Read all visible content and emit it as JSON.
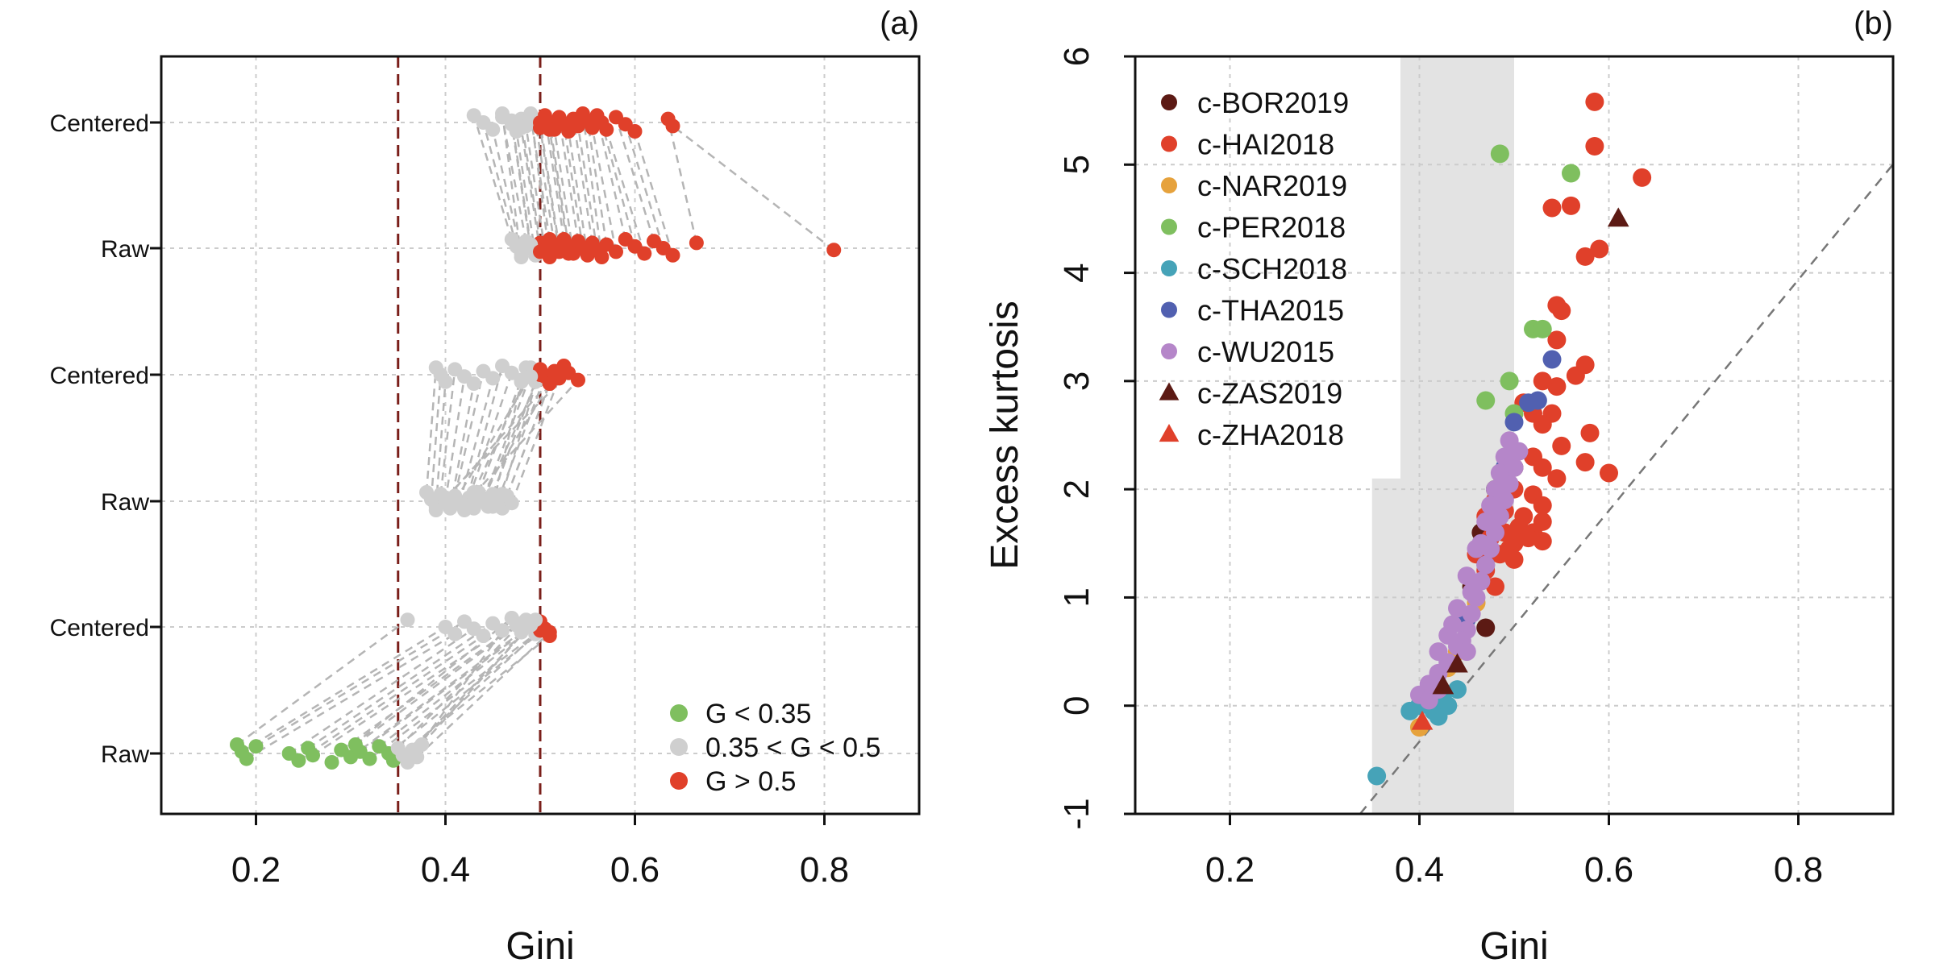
{
  "chart_data": [
    {
      "panel": "(a)",
      "type": "scatter",
      "xlabel": "Gini",
      "ylabel": "",
      "xlim": [
        0.1,
        0.9
      ],
      "xticks": [
        0.2,
        0.4,
        0.6,
        0.8
      ],
      "categories": [
        "Raw",
        "Centered",
        "Raw",
        "Centered",
        "Raw",
        "Centered"
      ],
      "grid": true,
      "vertical_reference_lines": [
        0.35,
        0.5
      ],
      "legend_position": "bottom-right",
      "legend": [
        {
          "label": "G < 0.35",
          "color": "#7fbf5f"
        },
        {
          "label": "0.35 < G < 0.5",
          "color": "#cfcfcf"
        },
        {
          "label": "G > 0.5",
          "color": "#e0402a"
        }
      ],
      "groups": [
        {
          "raw": [
            0.18,
            0.185,
            0.19,
            0.2,
            0.235,
            0.245,
            0.255,
            0.26,
            0.28,
            0.29,
            0.3,
            0.305,
            0.31,
            0.32,
            0.33,
            0.34,
            0.345,
            0.35,
            0.355,
            0.36,
            0.365,
            0.37,
            0.375
          ],
          "centered": [
            0.36,
            0.4,
            0.41,
            0.42,
            0.43,
            0.44,
            0.45,
            0.46,
            0.47,
            0.475,
            0.48,
            0.485,
            0.49,
            0.495,
            0.5,
            0.505,
            0.51,
            0.48,
            0.5,
            0.47,
            0.49,
            0.51,
            0.495
          ]
        },
        {
          "raw": [
            0.38,
            0.385,
            0.39,
            0.395,
            0.4,
            0.405,
            0.41,
            0.415,
            0.42,
            0.425,
            0.43,
            0.435,
            0.44,
            0.445,
            0.45,
            0.455,
            0.46,
            0.465,
            0.47,
            0.39,
            0.4,
            0.42,
            0.43,
            0.44,
            0.45,
            0.46,
            0.41,
            0.43
          ],
          "centered": [
            0.39,
            0.395,
            0.4,
            0.41,
            0.42,
            0.43,
            0.44,
            0.45,
            0.46,
            0.47,
            0.48,
            0.485,
            0.49,
            0.495,
            0.5,
            0.505,
            0.51,
            0.515,
            0.52,
            0.525,
            0.53,
            0.54,
            0.49,
            0.5,
            0.48,
            0.5,
            0.49,
            0.51
          ]
        },
        {
          "raw": [
            0.47,
            0.475,
            0.48,
            0.485,
            0.49,
            0.495,
            0.5,
            0.505,
            0.51,
            0.515,
            0.52,
            0.525,
            0.53,
            0.535,
            0.54,
            0.545,
            0.55,
            0.555,
            0.56,
            0.565,
            0.57,
            0.58,
            0.59,
            0.6,
            0.61,
            0.62,
            0.63,
            0.64,
            0.665,
            0.81,
            0.48,
            0.49,
            0.5,
            0.51,
            0.52,
            0.53
          ],
          "centered": [
            0.43,
            0.44,
            0.45,
            0.46,
            0.47,
            0.475,
            0.48,
            0.485,
            0.49,
            0.495,
            0.5,
            0.505,
            0.51,
            0.515,
            0.52,
            0.525,
            0.53,
            0.535,
            0.54,
            0.545,
            0.55,
            0.555,
            0.56,
            0.565,
            0.57,
            0.58,
            0.59,
            0.6,
            0.635,
            0.64,
            0.46,
            0.47,
            0.48,
            0.49,
            0.5,
            0.51
          ]
        }
      ]
    },
    {
      "panel": "(b)",
      "type": "scatter",
      "xlabel": "Gini",
      "ylabel": "Excess kurtosis",
      "xlim": [
        0.1,
        0.9
      ],
      "ylim": [
        -1,
        6
      ],
      "xticks": [
        0.2,
        0.4,
        0.6,
        0.8
      ],
      "yticks": [
        -1,
        0,
        1,
        2,
        3,
        4,
        5,
        6
      ],
      "grid": true,
      "shaded_region": {
        "x": [
          0.35,
          0.5
        ],
        "notch_x": 0.38,
        "notch_y": 2.1
      },
      "reference_line": {
        "slope": 10.67,
        "intercept": -4.6
      },
      "legend_position": "top-left",
      "series": [
        {
          "name": "c-BOR2019",
          "color": "#5c1a14",
          "marker": "circle",
          "points": [
            [
              0.47,
              0.72
            ],
            [
              0.465,
              1.6
            ],
            [
              0.48,
              2.0
            ],
            [
              0.5,
              2.2
            ],
            [
              0.455,
              1.1
            ]
          ]
        },
        {
          "name": "c-HAI2018",
          "color": "#e0402a",
          "marker": "circle",
          "points": [
            [
              0.585,
              5.58
            ],
            [
              0.585,
              5.17
            ],
            [
              0.635,
              4.88
            ],
            [
              0.56,
              4.62
            ],
            [
              0.54,
              4.6
            ],
            [
              0.59,
              4.22
            ],
            [
              0.575,
              4.15
            ],
            [
              0.545,
              3.7
            ],
            [
              0.55,
              3.65
            ],
            [
              0.545,
              3.38
            ],
            [
              0.575,
              3.15
            ],
            [
              0.565,
              3.05
            ],
            [
              0.545,
              2.95
            ],
            [
              0.53,
              3.0
            ],
            [
              0.52,
              2.7
            ],
            [
              0.54,
              2.7
            ],
            [
              0.51,
              2.8
            ],
            [
              0.53,
              2.6
            ],
            [
              0.58,
              2.52
            ],
            [
              0.55,
              2.4
            ],
            [
              0.52,
              2.3
            ],
            [
              0.53,
              2.2
            ],
            [
              0.575,
              2.25
            ],
            [
              0.6,
              2.15
            ],
            [
              0.545,
              2.1
            ],
            [
              0.5,
              2.0
            ],
            [
              0.52,
              1.95
            ],
            [
              0.53,
              1.85
            ],
            [
              0.48,
              1.9
            ],
            [
              0.51,
              1.75
            ],
            [
              0.53,
              1.7
            ],
            [
              0.49,
              1.6
            ],
            [
              0.5,
              1.5
            ],
            [
              0.53,
              1.52
            ],
            [
              0.485,
              1.4
            ],
            [
              0.5,
              1.35
            ],
            [
              0.46,
              1.4
            ],
            [
              0.47,
              1.25
            ],
            [
              0.48,
              1.1
            ],
            [
              0.52,
              1.6
            ],
            [
              0.49,
              1.8
            ],
            [
              0.505,
              1.65
            ],
            [
              0.515,
              1.55
            ],
            [
              0.475,
              1.55
            ],
            [
              0.495,
              1.45
            ],
            [
              0.47,
              1.75
            ]
          ]
        },
        {
          "name": "c-NAR2019",
          "color": "#e6a23c",
          "marker": "circle",
          "points": [
            [
              0.46,
              0.95
            ],
            [
              0.4,
              -0.2
            ],
            [
              0.44,
              0.5
            ],
            [
              0.43,
              0.35
            ]
          ]
        },
        {
          "name": "c-PER2018",
          "color": "#7fbf5f",
          "marker": "circle",
          "points": [
            [
              0.485,
              5.1
            ],
            [
              0.56,
              4.92
            ],
            [
              0.52,
              3.48
            ],
            [
              0.53,
              3.48
            ],
            [
              0.495,
              3.0
            ],
            [
              0.47,
              2.82
            ],
            [
              0.5,
              2.7
            ],
            [
              0.48,
              2.0
            ]
          ]
        },
        {
          "name": "c-SCH2018",
          "color": "#46a3b8",
          "marker": "circle",
          "points": [
            [
              0.355,
              -0.65
            ],
            [
              0.4,
              0.0
            ],
            [
              0.41,
              0.05
            ],
            [
              0.415,
              -0.05
            ],
            [
              0.42,
              -0.1
            ],
            [
              0.43,
              0.0
            ],
            [
              0.44,
              0.15
            ],
            [
              0.405,
              0.1
            ],
            [
              0.39,
              -0.05
            ],
            [
              0.425,
              0.05
            ]
          ]
        },
        {
          "name": "c-THA2015",
          "color": "#5160b0",
          "marker": "circle",
          "points": [
            [
              0.54,
              3.2
            ],
            [
              0.525,
              2.82
            ],
            [
              0.5,
              2.62
            ],
            [
              0.515,
              2.8
            ],
            [
              0.49,
              2.2
            ],
            [
              0.47,
              1.3
            ],
            [
              0.45,
              0.8
            ]
          ]
        },
        {
          "name": "c-WU2015",
          "color": "#b586c9",
          "marker": "circle",
          "points": [
            [
              0.4,
              0.1
            ],
            [
              0.41,
              0.2
            ],
            [
              0.42,
              0.3
            ],
            [
              0.43,
              0.4
            ],
            [
              0.44,
              0.55
            ],
            [
              0.45,
              0.7
            ],
            [
              0.455,
              0.85
            ],
            [
              0.46,
              1.0
            ],
            [
              0.465,
              1.15
            ],
            [
              0.47,
              1.3
            ],
            [
              0.475,
              1.45
            ],
            [
              0.48,
              1.6
            ],
            [
              0.485,
              1.75
            ],
            [
              0.49,
              1.9
            ],
            [
              0.495,
              2.05
            ],
            [
              0.5,
              2.2
            ],
            [
              0.505,
              2.35
            ],
            [
              0.49,
              2.3
            ],
            [
              0.48,
              2.0
            ],
            [
              0.47,
              1.7
            ],
            [
              0.46,
              1.45
            ],
            [
              0.45,
              1.2
            ],
            [
              0.44,
              0.9
            ],
            [
              0.43,
              0.65
            ],
            [
              0.42,
              0.5
            ],
            [
              0.435,
              0.75
            ],
            [
              0.445,
              0.6
            ],
            [
              0.455,
              1.05
            ],
            [
              0.465,
              1.5
            ],
            [
              0.475,
              1.85
            ],
            [
              0.485,
              2.15
            ],
            [
              0.495,
              2.45
            ],
            [
              0.41,
              0.05
            ],
            [
              0.42,
              0.15
            ],
            [
              0.45,
              0.5
            ]
          ]
        },
        {
          "name": "c-ZAS2019",
          "color": "#5c1a14",
          "marker": "triangle",
          "points": [
            [
              0.61,
              4.5
            ],
            [
              0.44,
              0.38
            ],
            [
              0.425,
              0.18
            ]
          ]
        },
        {
          "name": "c-ZHA2018",
          "color": "#e0402a",
          "marker": "triangle",
          "points": [
            [
              0.403,
              -0.15
            ]
          ]
        }
      ]
    }
  ]
}
